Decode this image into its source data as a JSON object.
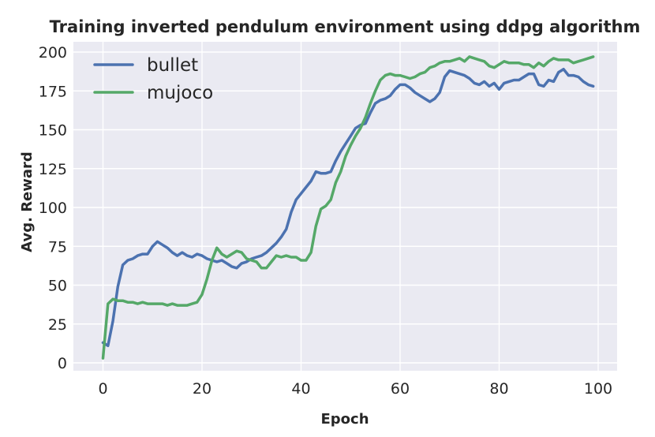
{
  "figure": {
    "title": "Training inverted pendulum environment using ddpg algorithm",
    "xlabel": "Epoch",
    "ylabel": "Avg. Reward"
  },
  "legend": {
    "position": "upper left",
    "items": [
      {
        "label": "bullet",
        "color": "#4C72B0"
      },
      {
        "label": "mujoco",
        "color": "#55A868"
      }
    ]
  },
  "colors": {
    "figure_background": "#ffffff",
    "axes_background": "#EAEAF2",
    "grid": "#ffffff",
    "text": "#262626",
    "bullet_line": "#4C72B0",
    "mujoco_line": "#55A868"
  },
  "chart_data": {
    "type": "line",
    "title": "Training inverted pendulum environment using ddpg algorithm",
    "xlabel": "Epoch",
    "ylabel": "Avg. Reward",
    "grid": true,
    "legend_position": "upper left",
    "xlim": [
      -5,
      104
    ],
    "ylim": [
      -7,
      207
    ],
    "xticks": [
      0,
      20,
      40,
      60,
      80,
      100
    ],
    "yticks": [
      0,
      25,
      50,
      75,
      100,
      125,
      150,
      175,
      200
    ],
    "x_is_epoch_index": true,
    "x_start": 0,
    "x_step": 1,
    "series": [
      {
        "name": "bullet",
        "color": "#4C72B0",
        "values": [
          13,
          11,
          27,
          49,
          63,
          66,
          67,
          69,
          70,
          70,
          75,
          78,
          76,
          74,
          71,
          69,
          71,
          69,
          68,
          70,
          69,
          67,
          66,
          65,
          66,
          64,
          62,
          61,
          64,
          65,
          67,
          68,
          69,
          71,
          74,
          77,
          81,
          86,
          97,
          105,
          109,
          113,
          117,
          123,
          122,
          122,
          123,
          130,
          136,
          141,
          146,
          151,
          153,
          154,
          161,
          167,
          169,
          170,
          172,
          176,
          179,
          179,
          177,
          174,
          172,
          170,
          168,
          170,
          174,
          184,
          188,
          187,
          186,
          185,
          183,
          180,
          179,
          181,
          178,
          180,
          176,
          180,
          181,
          182,
          182,
          184,
          186,
          186,
          179,
          178,
          182,
          181,
          187,
          189,
          185,
          185,
          184,
          181,
          179,
          178
        ]
      },
      {
        "name": "mujoco",
        "color": "#55A868",
        "values": [
          3,
          38,
          41,
          40,
          40,
          39,
          39,
          38,
          39,
          38,
          38,
          38,
          38,
          37,
          38,
          37,
          37,
          37,
          38,
          39,
          44,
          54,
          66,
          74,
          70,
          68,
          70,
          72,
          71,
          67,
          66,
          65,
          61,
          61,
          65,
          69,
          68,
          69,
          68,
          68,
          66,
          66,
          71,
          88,
          99,
          101,
          105,
          116,
          123,
          133,
          140,
          146,
          151,
          158,
          167,
          175,
          182,
          185,
          186,
          185,
          185,
          184,
          183,
          184,
          186,
          187,
          190,
          191,
          193,
          194,
          194,
          195,
          196,
          194,
          197,
          196,
          195,
          194,
          191,
          190,
          192,
          194,
          193,
          193,
          193,
          192,
          192,
          190,
          193,
          191,
          194,
          196,
          195,
          195,
          195,
          193,
          194,
          195,
          196,
          197
        ]
      }
    ]
  }
}
